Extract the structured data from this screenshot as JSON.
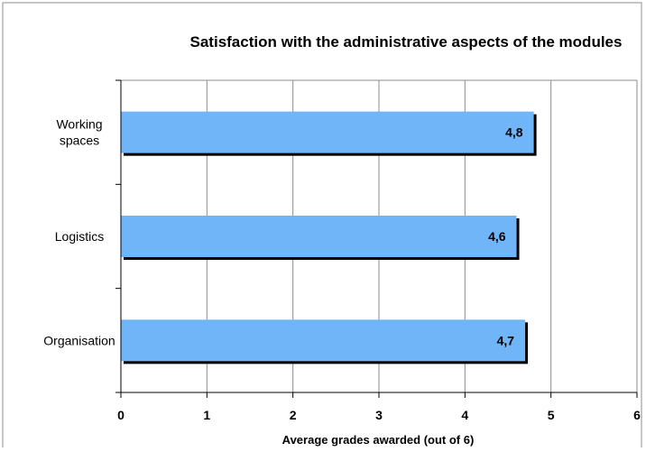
{
  "chart_data": {
    "type": "bar",
    "orientation": "horizontal",
    "title": "Satisfaction with the administrative aspects of the modules",
    "xlabel": "Average grades awarded (out of 6)",
    "ylabel": "",
    "categories": [
      [
        "Working",
        "spaces"
      ],
      [
        "Logistics"
      ],
      [
        "Organisation"
      ]
    ],
    "values": [
      4.8,
      4.6,
      4.7
    ],
    "data_labels": [
      "4,8",
      "4,6",
      "4,7"
    ],
    "xlim": [
      0,
      6
    ],
    "xticks": [
      0,
      1,
      2,
      3,
      4,
      5,
      6
    ],
    "xtick_labels": [
      "0",
      "1",
      "2",
      "3",
      "4",
      "5",
      "6"
    ],
    "grid": "vertical",
    "legend": "none",
    "colors": {
      "bar_fill": "#6fb5f8",
      "bar_shadow": "#000000",
      "grid": "#8c8c8c",
      "frame": "#8c8c8c"
    }
  }
}
